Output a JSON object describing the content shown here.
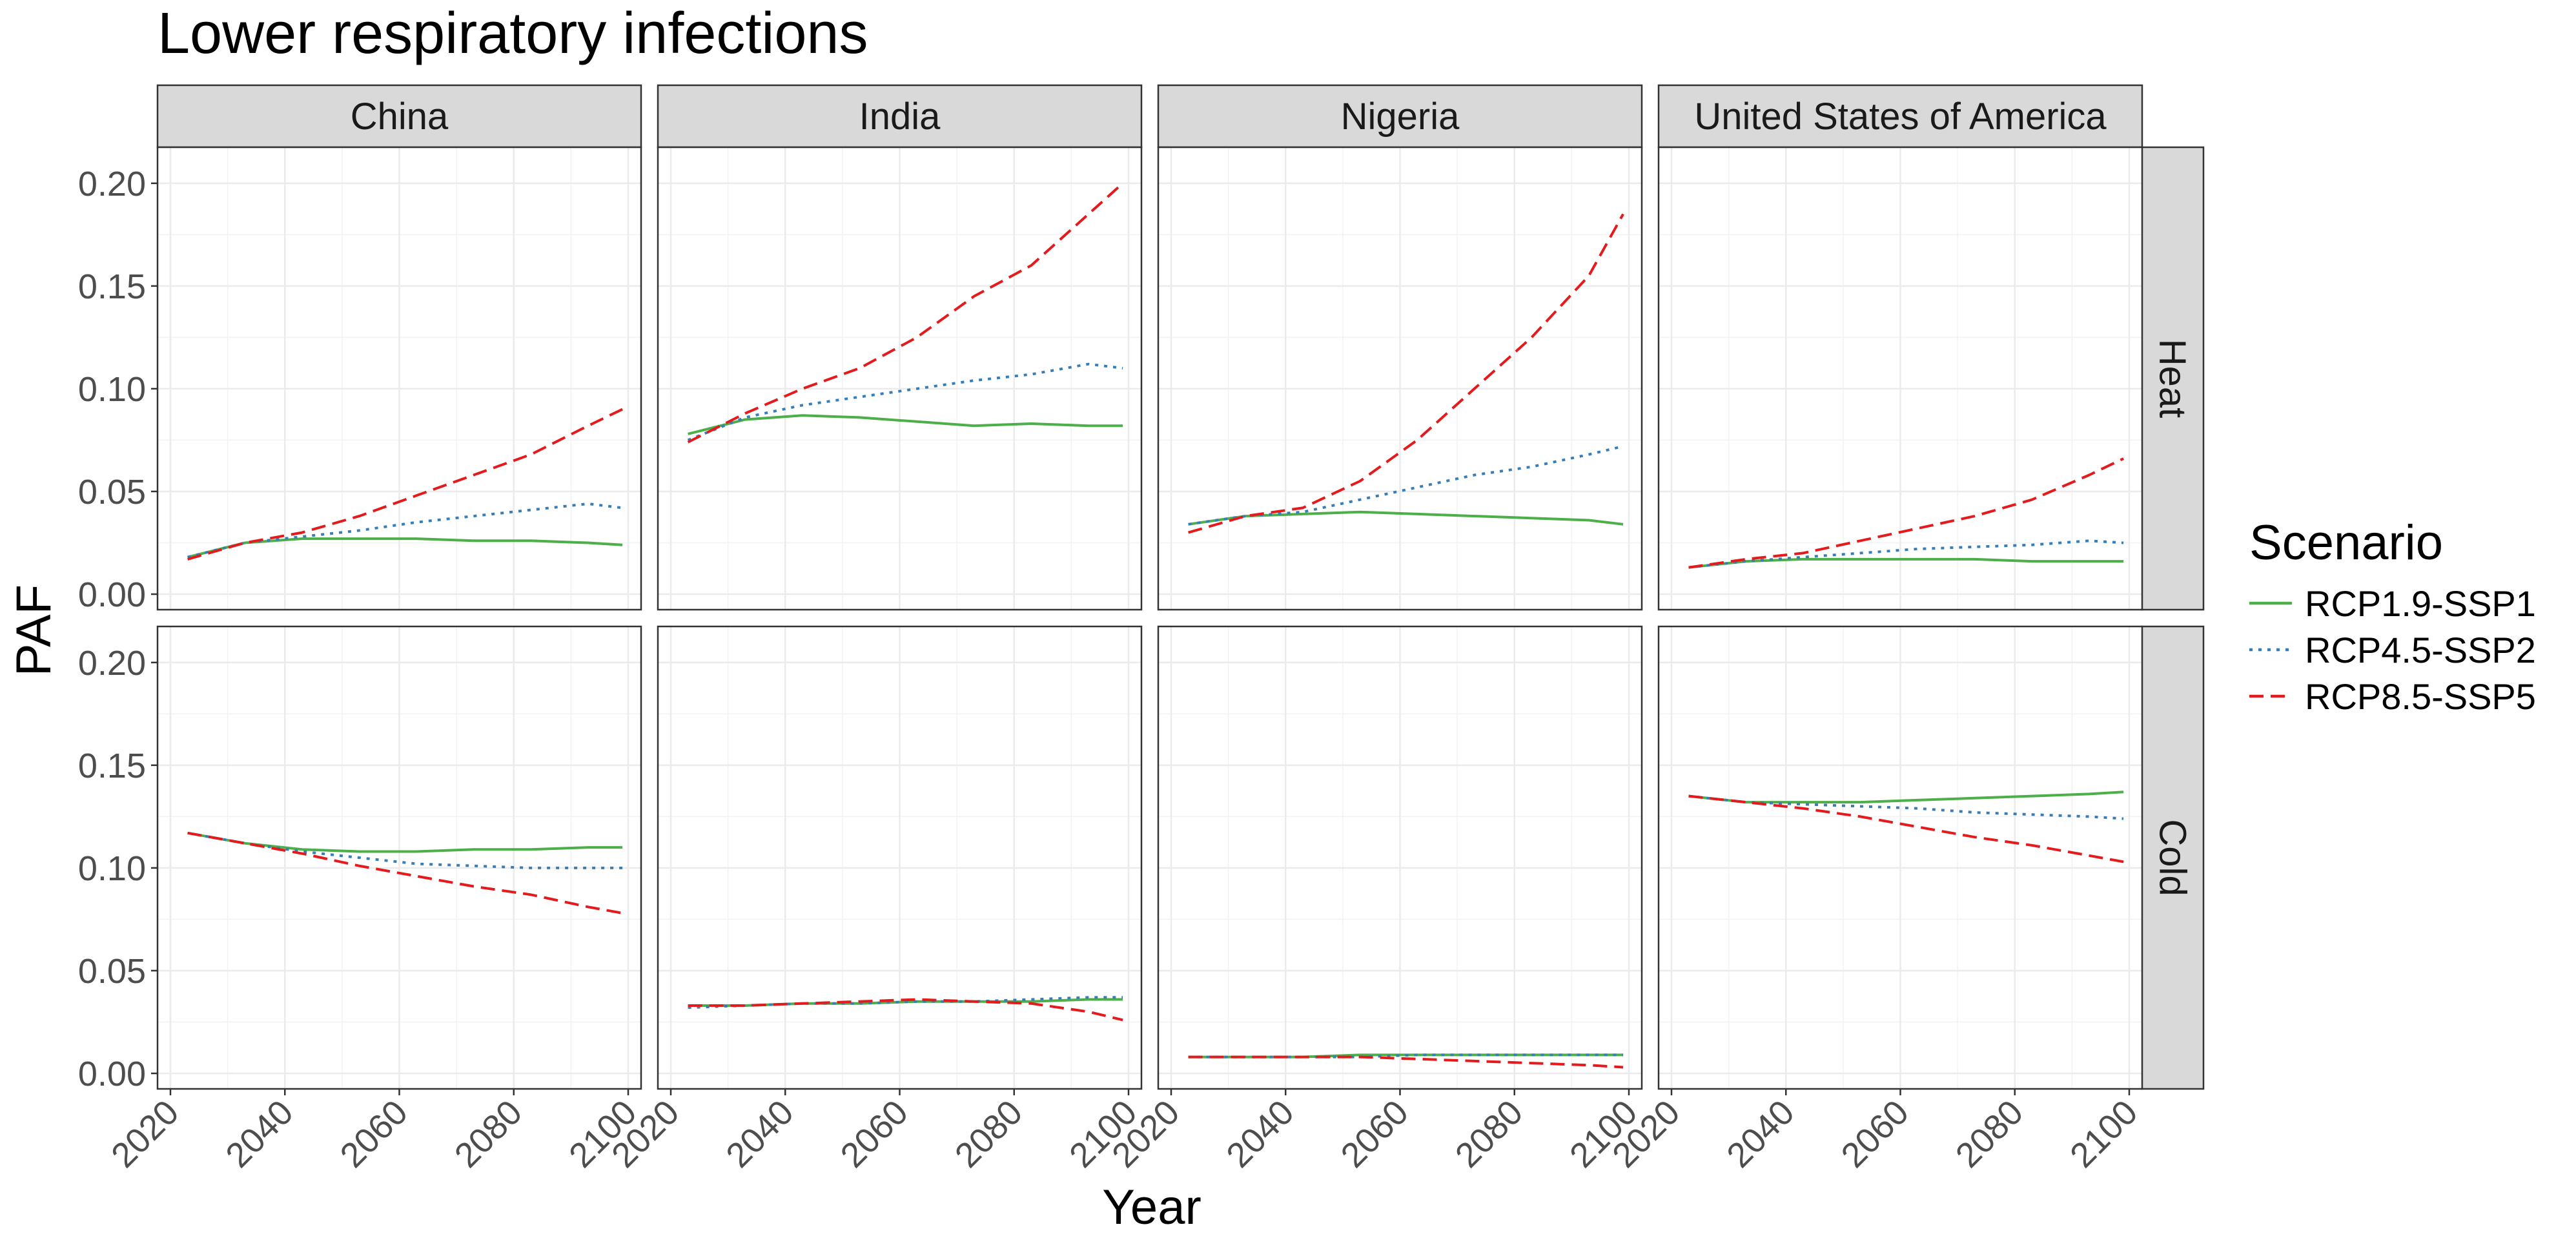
{
  "chart_data": {
    "type": "line",
    "title": "Lower respiratory infections",
    "xlabel": "Year",
    "ylabel": "PAF",
    "xlim": [
      2020,
      2100
    ],
    "ylim": [
      0,
      0.21
    ],
    "x_ticks": [
      2020,
      2040,
      2060,
      2080,
      2100
    ],
    "y_ticks": [
      0.0,
      0.05,
      0.1,
      0.15,
      0.2
    ],
    "y_tick_labels": [
      "0.00",
      "0.05",
      "0.10",
      "0.15",
      "0.20"
    ],
    "grid": true,
    "legend": {
      "title": "Scenario",
      "position": "right",
      "entries": [
        "RCP1.9-SSP1",
        "RCP4.5-SSP2",
        "RCP8.5-SSP5"
      ]
    },
    "columns": [
      "China",
      "India",
      "Nigeria",
      "United States of America"
    ],
    "rows": [
      "Heat",
      "Cold"
    ],
    "series_styles": [
      {
        "name": "RCP1.9-SSP1",
        "color": "#4daf4a",
        "dash": "solid"
      },
      {
        "name": "RCP4.5-SSP2",
        "color": "#377eb8",
        "dash": "dotted"
      },
      {
        "name": "RCP8.5-SSP5",
        "color": "#e41a1c",
        "dash": "dashed"
      }
    ],
    "x": [
      2023,
      2033,
      2043,
      2053,
      2063,
      2073,
      2083,
      2093,
      2099
    ],
    "panels": [
      {
        "column": "China",
        "row": "Heat",
        "series": [
          {
            "name": "RCP1.9-SSP1",
            "values": [
              0.018,
              0.025,
              0.027,
              0.027,
              0.027,
              0.026,
              0.026,
              0.025,
              0.024
            ]
          },
          {
            "name": "RCP4.5-SSP2",
            "values": [
              0.018,
              0.025,
              0.028,
              0.031,
              0.035,
              0.038,
              0.041,
              0.044,
              0.042
            ]
          },
          {
            "name": "RCP8.5-SSP5",
            "values": [
              0.017,
              0.025,
              0.03,
              0.038,
              0.048,
              0.058,
              0.068,
              0.082,
              0.09
            ]
          }
        ]
      },
      {
        "column": "India",
        "row": "Heat",
        "series": [
          {
            "name": "RCP1.9-SSP1",
            "values": [
              0.078,
              0.085,
              0.087,
              0.086,
              0.084,
              0.082,
              0.083,
              0.082,
              0.082
            ]
          },
          {
            "name": "RCP4.5-SSP2",
            "values": [
              0.075,
              0.086,
              0.092,
              0.096,
              0.1,
              0.104,
              0.107,
              0.112,
              0.11
            ]
          },
          {
            "name": "RCP8.5-SSP5",
            "values": [
              0.074,
              0.088,
              0.1,
              0.11,
              0.125,
              0.145,
              0.16,
              0.185,
              0.2
            ]
          }
        ]
      },
      {
        "column": "Nigeria",
        "row": "Heat",
        "series": [
          {
            "name": "RCP1.9-SSP1",
            "values": [
              0.034,
              0.038,
              0.039,
              0.04,
              0.039,
              0.038,
              0.037,
              0.036,
              0.034
            ]
          },
          {
            "name": "RCP4.5-SSP2",
            "values": [
              0.034,
              0.038,
              0.04,
              0.046,
              0.052,
              0.058,
              0.062,
              0.068,
              0.072
            ]
          },
          {
            "name": "RCP8.5-SSP5",
            "values": [
              0.03,
              0.038,
              0.042,
              0.055,
              0.075,
              0.1,
              0.125,
              0.155,
              0.185
            ]
          }
        ]
      },
      {
        "column": "United States of America",
        "row": "Heat",
        "series": [
          {
            "name": "RCP1.9-SSP1",
            "values": [
              0.013,
              0.016,
              0.017,
              0.017,
              0.017,
              0.017,
              0.016,
              0.016,
              0.016
            ]
          },
          {
            "name": "RCP4.5-SSP2",
            "values": [
              0.013,
              0.016,
              0.018,
              0.02,
              0.022,
              0.023,
              0.024,
              0.026,
              0.025
            ]
          },
          {
            "name": "RCP8.5-SSP5",
            "values": [
              0.013,
              0.017,
              0.02,
              0.026,
              0.032,
              0.038,
              0.046,
              0.058,
              0.066
            ]
          }
        ]
      },
      {
        "column": "China",
        "row": "Cold",
        "series": [
          {
            "name": "RCP1.9-SSP1",
            "values": [
              0.117,
              0.112,
              0.109,
              0.108,
              0.108,
              0.109,
              0.109,
              0.11,
              0.11
            ]
          },
          {
            "name": "RCP4.5-SSP2",
            "values": [
              0.117,
              0.112,
              0.108,
              0.105,
              0.102,
              0.101,
              0.1,
              0.1,
              0.1
            ]
          },
          {
            "name": "RCP8.5-SSP5",
            "values": [
              0.117,
              0.112,
              0.107,
              0.101,
              0.096,
              0.091,
              0.087,
              0.081,
              0.078
            ]
          }
        ]
      },
      {
        "column": "India",
        "row": "Cold",
        "series": [
          {
            "name": "RCP1.9-SSP1",
            "values": [
              0.033,
              0.033,
              0.034,
              0.034,
              0.035,
              0.035,
              0.035,
              0.036,
              0.036
            ]
          },
          {
            "name": "RCP4.5-SSP2",
            "values": [
              0.032,
              0.033,
              0.034,
              0.034,
              0.035,
              0.035,
              0.036,
              0.037,
              0.037
            ]
          },
          {
            "name": "RCP8.5-SSP5",
            "values": [
              0.033,
              0.033,
              0.034,
              0.035,
              0.036,
              0.035,
              0.034,
              0.03,
              0.026
            ]
          }
        ]
      },
      {
        "column": "Nigeria",
        "row": "Cold",
        "series": [
          {
            "name": "RCP1.9-SSP1",
            "values": [
              0.008,
              0.008,
              0.008,
              0.009,
              0.009,
              0.009,
              0.009,
              0.009,
              0.009
            ]
          },
          {
            "name": "RCP4.5-SSP2",
            "values": [
              0.008,
              0.008,
              0.008,
              0.008,
              0.009,
              0.009,
              0.009,
              0.009,
              0.009
            ]
          },
          {
            "name": "RCP8.5-SSP5",
            "values": [
              0.008,
              0.008,
              0.008,
              0.008,
              0.007,
              0.006,
              0.005,
              0.004,
              0.003
            ]
          }
        ]
      },
      {
        "column": "United States of America",
        "row": "Cold",
        "series": [
          {
            "name": "RCP1.9-SSP1",
            "values": [
              0.135,
              0.132,
              0.132,
              0.132,
              0.133,
              0.134,
              0.135,
              0.136,
              0.137
            ]
          },
          {
            "name": "RCP4.5-SSP2",
            "values": [
              0.135,
              0.132,
              0.131,
              0.13,
              0.129,
              0.127,
              0.126,
              0.125,
              0.124
            ]
          },
          {
            "name": "RCP8.5-SSP5",
            "values": [
              0.135,
              0.132,
              0.129,
              0.125,
              0.12,
              0.115,
              0.111,
              0.106,
              0.103
            ]
          }
        ]
      }
    ]
  }
}
